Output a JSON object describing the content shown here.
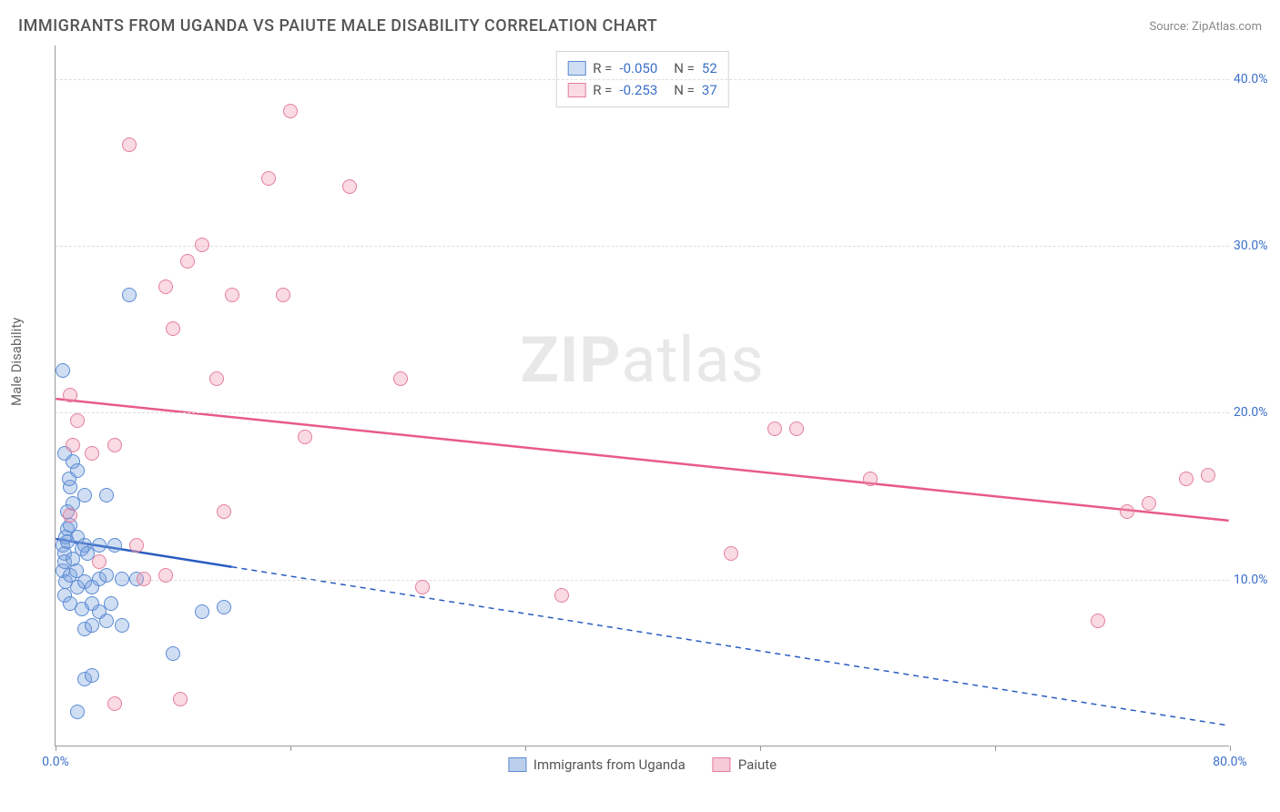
{
  "title": "IMMIGRANTS FROM UGANDA VS PAIUTE MALE DISABILITY CORRELATION CHART",
  "source": "Source: ZipAtlas.com",
  "watermark": {
    "bold": "ZIP",
    "light": "atlas"
  },
  "chart": {
    "type": "scatter",
    "ylabel": "Male Disability",
    "xlim": [
      0,
      80
    ],
    "ylim": [
      0,
      42
    ],
    "xtick_positions": [
      0,
      16,
      32,
      48,
      64,
      80
    ],
    "xtick_labels": {
      "0": "0.0%",
      "80": "80.0%"
    },
    "ytick_positions": [
      10,
      20,
      30,
      40
    ],
    "ytick_labels": {
      "10": "10.0%",
      "20": "20.0%",
      "30": "30.0%",
      "40": "40.0%"
    },
    "background_color": "#ffffff",
    "grid_color": "#dddddd",
    "axis_color": "#999999",
    "label_color": "#3b6fc9",
    "marker_radius": 8,
    "series": [
      {
        "name": "Immigrants from Uganda",
        "fill": "rgba(120,160,220,0.35)",
        "stroke": "#5b8bd4",
        "line_color": "#2a5cc0",
        "line_width": 2.5,
        "r": "-0.050",
        "n": "52",
        "trend": {
          "y_at_x0": 12.4,
          "y_at_x80": 1.2,
          "solid_until_x": 12
        },
        "points": [
          [
            0.5,
            12.0
          ],
          [
            0.6,
            11.5
          ],
          [
            0.7,
            12.5
          ],
          [
            0.8,
            13.0
          ],
          [
            0.5,
            10.5
          ],
          [
            0.6,
            11.0
          ],
          [
            0.8,
            14.0
          ],
          [
            1.0,
            15.5
          ],
          [
            0.9,
            16.0
          ],
          [
            1.2,
            17.0
          ],
          [
            0.6,
            17.5
          ],
          [
            0.5,
            22.5
          ],
          [
            1.5,
            16.5
          ],
          [
            1.2,
            14.5
          ],
          [
            2.0,
            15.0
          ],
          [
            0.7,
            9.8
          ],
          [
            1.0,
            10.2
          ],
          [
            1.4,
            10.5
          ],
          [
            0.6,
            9.0
          ],
          [
            1.5,
            9.5
          ],
          [
            2.0,
            9.8
          ],
          [
            3.0,
            10.0
          ],
          [
            2.5,
            9.5
          ],
          [
            3.5,
            10.2
          ],
          [
            4.5,
            10.0
          ],
          [
            5.5,
            10.0
          ],
          [
            3.0,
            8.0
          ],
          [
            1.0,
            8.5
          ],
          [
            1.8,
            8.2
          ],
          [
            2.5,
            8.5
          ],
          [
            2.0,
            7.0
          ],
          [
            2.5,
            7.2
          ],
          [
            3.5,
            7.5
          ],
          [
            3.0,
            12.0
          ],
          [
            1.5,
            12.5
          ],
          [
            2.0,
            12.0
          ],
          [
            1.2,
            11.2
          ],
          [
            0.8,
            12.2
          ],
          [
            4.0,
            12.0
          ],
          [
            5.0,
            27.0
          ],
          [
            3.5,
            15.0
          ],
          [
            10.0,
            8.0
          ],
          [
            1.8,
            11.8
          ],
          [
            2.2,
            11.5
          ],
          [
            1.0,
            13.2
          ],
          [
            8.0,
            5.5
          ],
          [
            2.0,
            4.0
          ],
          [
            2.5,
            4.2
          ],
          [
            3.8,
            8.5
          ],
          [
            1.5,
            2.0
          ],
          [
            4.5,
            7.2
          ],
          [
            11.5,
            8.3
          ]
        ]
      },
      {
        "name": "Paiute",
        "fill": "rgba(240,150,175,0.35)",
        "stroke": "#e37f9b",
        "line_color": "#e85a8a",
        "line_width": 2.5,
        "r": "-0.253",
        "n": "37",
        "trend": {
          "y_at_x0": 20.8,
          "y_at_x80": 13.5,
          "solid_until_x": 80
        },
        "points": [
          [
            1.0,
            21.0
          ],
          [
            1.5,
            19.5
          ],
          [
            1.2,
            18.0
          ],
          [
            2.5,
            17.5
          ],
          [
            4.0,
            18.0
          ],
          [
            5.0,
            36.0
          ],
          [
            9.0,
            29.0
          ],
          [
            16.0,
            38.0
          ],
          [
            14.5,
            34.0
          ],
          [
            10.0,
            30.0
          ],
          [
            7.5,
            27.5
          ],
          [
            12.0,
            27.0
          ],
          [
            15.5,
            27.0
          ],
          [
            8.0,
            25.0
          ],
          [
            11.0,
            22.0
          ],
          [
            17.0,
            18.5
          ],
          [
            11.5,
            14.0
          ],
          [
            23.5,
            22.0
          ],
          [
            5.5,
            12.0
          ],
          [
            1.0,
            13.8
          ],
          [
            3.0,
            11.0
          ],
          [
            6.0,
            10.0
          ],
          [
            7.5,
            10.2
          ],
          [
            4.0,
            2.5
          ],
          [
            8.5,
            2.8
          ],
          [
            25.0,
            9.5
          ],
          [
            34.5,
            9.0
          ],
          [
            49.0,
            19.0
          ],
          [
            50.5,
            19.0
          ],
          [
            46.0,
            11.5
          ],
          [
            55.5,
            16.0
          ],
          [
            71.0,
            7.5
          ],
          [
            73.0,
            14.0
          ],
          [
            74.5,
            14.5
          ],
          [
            77.0,
            16.0
          ],
          [
            78.5,
            16.2
          ],
          [
            20.0,
            33.5
          ]
        ]
      }
    ]
  },
  "legend_bottom": [
    {
      "label": "Immigrants from Uganda",
      "fill": "rgba(120,160,220,0.5)",
      "stroke": "#5b8bd4"
    },
    {
      "label": "Paiute",
      "fill": "rgba(240,150,175,0.5)",
      "stroke": "#e37f9b"
    }
  ]
}
